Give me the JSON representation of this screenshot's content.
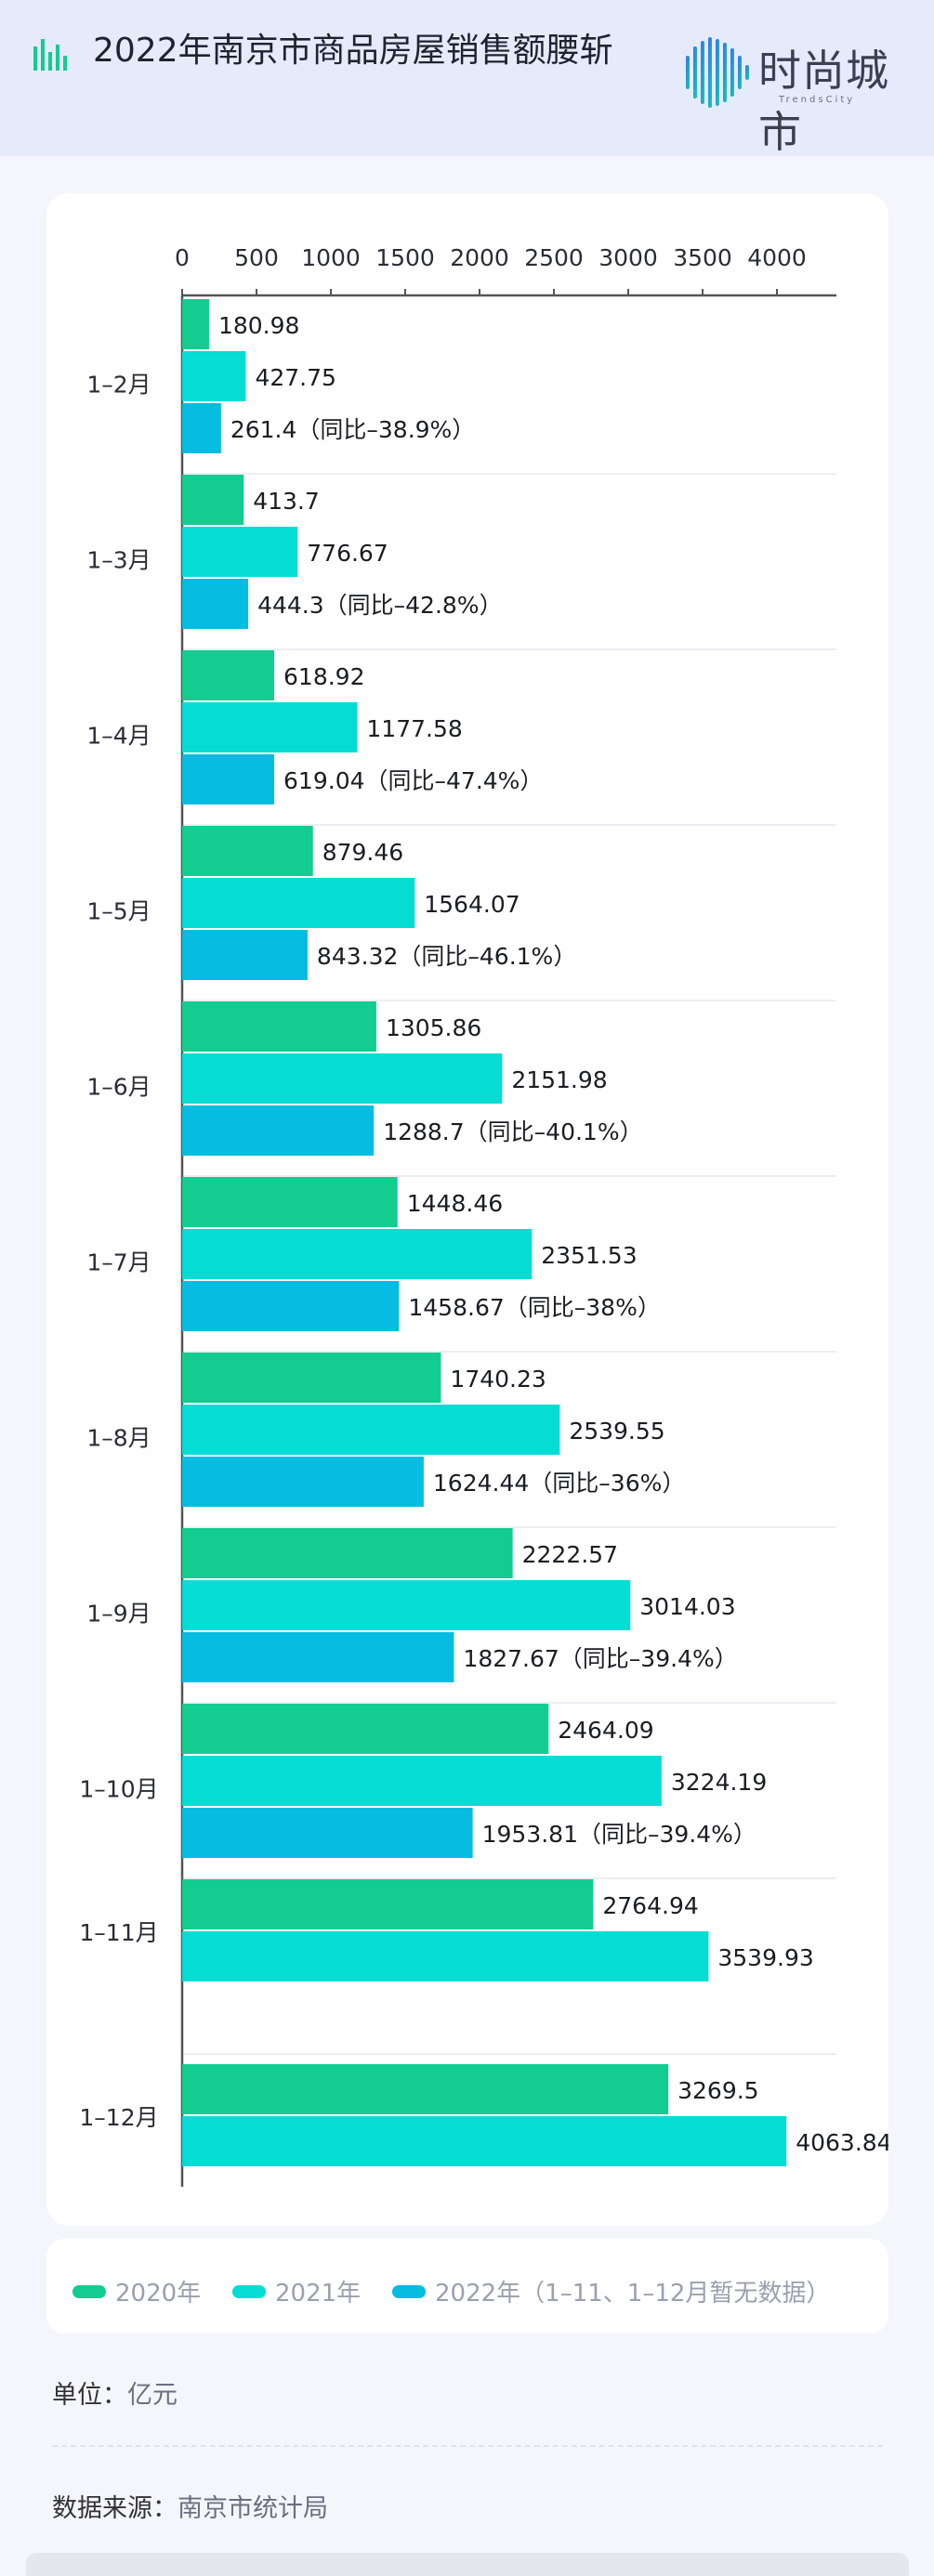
{
  "header": {
    "title": "2022年南京市商品房屋销售额腰斩",
    "logo_text": "时尚城市",
    "logo_subtext": "TrendsCity"
  },
  "colors": {
    "header_bg": "#e6ebfb",
    "series_2020": "#13cc90",
    "series_2021": "#04dcd4",
    "series_2022": "#06bce0"
  },
  "chart_data": {
    "type": "bar",
    "orientation": "horizontal",
    "categories": [
      "1–2月",
      "1–3月",
      "1–4月",
      "1–5月",
      "1–6月",
      "1–7月",
      "1–8月",
      "1–9月",
      "1–10月",
      "1–11月",
      "1–12月"
    ],
    "xlim": [
      0,
      4400
    ],
    "xticks": [
      0,
      500,
      1000,
      1500,
      2000,
      2500,
      3000,
      3500,
      4000
    ],
    "series": [
      {
        "name": "2020年",
        "values": [
          180.98,
          413.7,
          618.92,
          879.46,
          1305.86,
          1448.46,
          1740.23,
          2222.57,
          2464.09,
          2764.94,
          3269.5
        ]
      },
      {
        "name": "2021年",
        "values": [
          427.75,
          776.67,
          1177.58,
          1564.07,
          2151.98,
          2351.53,
          2539.55,
          3014.03,
          3224.19,
          3539.93,
          4063.84
        ]
      },
      {
        "name": "2022年",
        "values": [
          261.4,
          444.3,
          619.04,
          843.32,
          1288.7,
          1458.67,
          1624.44,
          1827.67,
          1953.81,
          null,
          null
        ]
      }
    ],
    "data_labels": [
      [
        "180.98",
        "427.75",
        "261.4（同比–38.9%）"
      ],
      [
        "413.7",
        "776.67",
        "444.3（同比–42.8%）"
      ],
      [
        "618.92",
        "1177.58",
        "619.04（同比–47.4%）"
      ],
      [
        "879.46",
        "1564.07",
        "843.32（同比–46.1%）"
      ],
      [
        "1305.86",
        "2151.98",
        "1288.7（同比–40.1%）"
      ],
      [
        "1448.46",
        "2351.53",
        "1458.67（同比–38%）"
      ],
      [
        "1740.23",
        "2539.55",
        "1624.44（同比–36%）"
      ],
      [
        "2222.57",
        "3014.03",
        "1827.67（同比–39.4%）"
      ],
      [
        "2464.09",
        "3224.19",
        "1953.81（同比–39.4%）"
      ],
      [
        "2764.94",
        "3539.93",
        ""
      ],
      [
        "3269.5",
        "4063.84",
        ""
      ]
    ]
  },
  "legend": [
    {
      "label": "2020年",
      "color": "#13cc90"
    },
    {
      "label": "2021年",
      "color": "#04dcd4"
    },
    {
      "label": "2022年（1–11、1–12月暂无数据）",
      "color": "#06bce0"
    }
  ],
  "info": {
    "unit_label": "单位：",
    "unit_value": "亿元",
    "source_label": "数据来源：",
    "source_value": "南京市统计局"
  }
}
